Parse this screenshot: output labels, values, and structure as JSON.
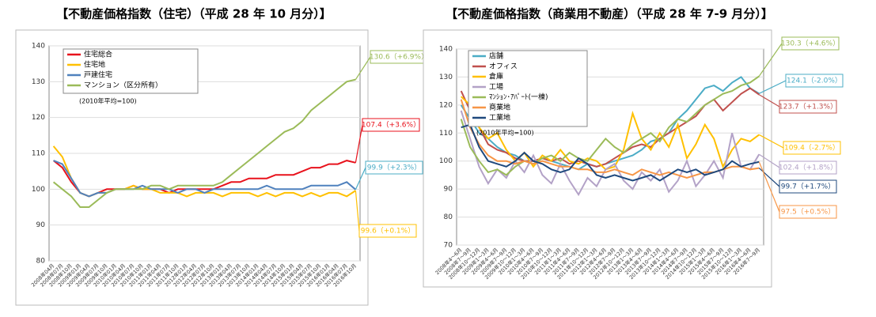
{
  "chart_data": [
    {
      "type": "line",
      "title": "【不動産価格指数（住宅）（平成 28 年 10 月分）】",
      "note": "(2010年平均=100)",
      "categories": [
        "2008年04月",
        "2008年07月",
        "2008年10月",
        "2009年01月",
        "2009年04月",
        "2009年07月",
        "2009年10月",
        "2010年01月",
        "2010年04月",
        "2010年07月",
        "2010年10月",
        "2011年01月",
        "2011年04月",
        "2011年07月",
        "2011年10月",
        "2012年01月",
        "2012年04月",
        "2012年07月",
        "2012年10月",
        "2013年01月",
        "2013年04月",
        "2013年07月",
        "2013年10月",
        "2014年01月",
        "2014年04月",
        "2014年07月",
        "2014年10月",
        "2015年01月",
        "2015年04月",
        "2015年07月",
        "2015年10月",
        "2016年01月",
        "2016年04月",
        "2016年07月",
        "2016年10月"
      ],
      "series": [
        {
          "name": "住宅総合",
          "color": "#e8121c",
          "values": [
            108,
            106,
            102,
            99,
            98,
            99,
            100,
            100,
            100,
            101,
            100,
            100,
            100,
            99,
            100,
            100,
            100,
            100,
            100,
            101,
            102,
            102,
            103,
            103,
            103,
            104,
            104,
            104,
            105,
            106,
            106,
            107,
            107,
            108,
            107.4
          ]
        },
        {
          "name": "住宅地",
          "color": "#ffc000",
          "values": [
            112,
            109,
            103,
            99,
            98,
            99,
            99,
            100,
            100,
            101,
            100,
            100,
            99,
            99,
            99,
            98,
            99,
            99,
            99,
            98,
            99,
            99,
            99,
            98,
            99,
            98,
            99,
            99,
            98,
            99,
            98,
            99,
            99,
            98,
            99.6
          ]
        },
        {
          "name": "戸建住宅",
          "color": "#4f81bd",
          "values": [
            108,
            107,
            103,
            99,
            98,
            99,
            99,
            100,
            100,
            100,
            101,
            100,
            100,
            100,
            99,
            100,
            100,
            99,
            100,
            100,
            100,
            100,
            100,
            100,
            101,
            100,
            100,
            100,
            100,
            101,
            101,
            101,
            101,
            102,
            99.9
          ]
        },
        {
          "name": "マンション（区分所有）",
          "color": "#9bbb59",
          "values": [
            102,
            100,
            98,
            95,
            95,
            97,
            99,
            100,
            100,
            100,
            100,
            101,
            101,
            100,
            101,
            101,
            101,
            101,
            101,
            102,
            104,
            106,
            108,
            110,
            112,
            114,
            116,
            117,
            119,
            122,
            124,
            126,
            128,
            130,
            130.6
          ]
        }
      ],
      "ylim": [
        80,
        140
      ],
      "yticks": [
        80,
        90,
        100,
        110,
        120,
        130,
        140
      ],
      "annotations": [
        {
          "text": "130.6（+6.9%）",
          "color": "#9bbb59"
        },
        {
          "text": "107.4（+3.6%）",
          "color": "#e8121c"
        },
        {
          "text": "99.9（+2.3%）",
          "color": "#4bacc6"
        },
        {
          "text": "99.6（+0.1%）",
          "color": "#ffc000"
        }
      ]
    },
    {
      "type": "line",
      "title": "【不動産価格指数（商業用不動産）（平成 28 年 7-9 月分）】",
      "note": "(2010年平均=100)",
      "categories": [
        "2008年4～6月",
        "2008年7～9月",
        "2008年10～12月",
        "2009年1～3月",
        "2009年4～6月",
        "2009年7～9月",
        "2009年10～12月",
        "2010年1～3月",
        "2010年4～6月",
        "2010年7～9月",
        "2010年10～12月",
        "2011年1～3月",
        "2011年4～6月",
        "2011年7～9月",
        "2011年10～12月",
        "2012年1～3月",
        "2012年4～6月",
        "2012年7～9月",
        "2012年10～12月",
        "2013年1～3月",
        "2013年4～6月",
        "2013年7～9月",
        "2013年10～12月",
        "2014年1～3月",
        "2014年4～6月",
        "2014年7～9月",
        "2014年10～12月",
        "2015年1～3月",
        "2015年4～6月",
        "2015年7～9月",
        "2015年10～12月",
        "2016年1～3月",
        "2016年4～6月",
        "2016年7～9月"
      ],
      "series": [
        {
          "name": "店舗",
          "color": "#4bacc6",
          "values": [
            120,
            115,
            110,
            108,
            105,
            103,
            102,
            100,
            100,
            101,
            100,
            99,
            98,
            97,
            99,
            98,
            99,
            100,
            101,
            102,
            104,
            107,
            108,
            110,
            115,
            118,
            122,
            126,
            127,
            125,
            128,
            130,
            126,
            124.1
          ]
        },
        {
          "name": "オフィス",
          "color": "#c0504d",
          "values": [
            125,
            118,
            112,
            106,
            104,
            103,
            101,
            100,
            100,
            101,
            100,
            101,
            99,
            100,
            99,
            98,
            99,
            101,
            103,
            105,
            106,
            105,
            108,
            110,
            112,
            114,
            116,
            120,
            122,
            118,
            121,
            124,
            126,
            123.7
          ]
        },
        {
          "name": "倉庫",
          "color": "#ffc000",
          "values": [
            123,
            120,
            112,
            108,
            110,
            104,
            100,
            103,
            98,
            102,
            100,
            104,
            100,
            99,
            101,
            100,
            97,
            98,
            104,
            117,
            108,
            104,
            110,
            105,
            113,
            101,
            106,
            113,
            108,
            98,
            104,
            108,
            107,
            109.4
          ]
        },
        {
          "name": "工場",
          "color": "#b3a2c7",
          "values": [
            118,
            108,
            98,
            92,
            97,
            94,
            100,
            96,
            102,
            95,
            92,
            99,
            93,
            88,
            94,
            91,
            97,
            99,
            93,
            90,
            96,
            93,
            97,
            89,
            93,
            100,
            91,
            95,
            100,
            94,
            110,
            98,
            97,
            102.4
          ]
        },
        {
          "name": "ﾏﾝｼｮﾝ･ｱﾊﾟｰﾄ(一棟)",
          "color": "#9bbb59",
          "values": [
            115,
            105,
            100,
            96,
            97,
            95,
            98,
            100,
            99,
            101,
            102,
            100,
            103,
            101,
            100,
            104,
            108,
            105,
            103,
            106,
            108,
            110,
            107,
            112,
            115,
            114,
            117,
            120,
            122,
            124,
            125,
            127,
            128,
            130.3
          ]
        },
        {
          "name": "商業地",
          "color": "#f79646",
          "values": [
            122,
            112,
            106,
            102,
            100,
            100,
            99,
            100,
            99,
            100,
            99,
            98,
            98,
            97,
            97,
            96,
            96,
            97,
            96,
            95,
            97,
            96,
            95,
            96,
            95,
            94,
            95,
            96,
            96,
            97,
            98,
            98,
            97,
            97.5
          ]
        },
        {
          "name": "工業地",
          "color": "#1f497d",
          "values": [
            112,
            113,
            105,
            100,
            99,
            98,
            100,
            103,
            100,
            99,
            97,
            96,
            97,
            101,
            99,
            95,
            94,
            95,
            94,
            93,
            94,
            95,
            93,
            95,
            97,
            96,
            97,
            95,
            96,
            97,
            100,
            98,
            99,
            99.7
          ]
        }
      ],
      "ylim": [
        70,
        140
      ],
      "yticks": [
        70,
        80,
        90,
        100,
        110,
        120,
        130,
        140
      ],
      "annotations": [
        {
          "text": "130.3（+4.6%）",
          "color": "#9bbb59"
        },
        {
          "text": "124.1（-2.0%）",
          "color": "#4bacc6"
        },
        {
          "text": "123.7（+1.3%）",
          "color": "#c0504d"
        },
        {
          "text": "109.4（-2.7%）",
          "color": "#ffc000"
        },
        {
          "text": "102.4（+1.8%）",
          "color": "#b3a2c7"
        },
        {
          "text": "99.7（+1.7%）",
          "color": "#1f497d"
        },
        {
          "text": "97.5（+0.5%）",
          "color": "#f79646"
        }
      ]
    }
  ]
}
